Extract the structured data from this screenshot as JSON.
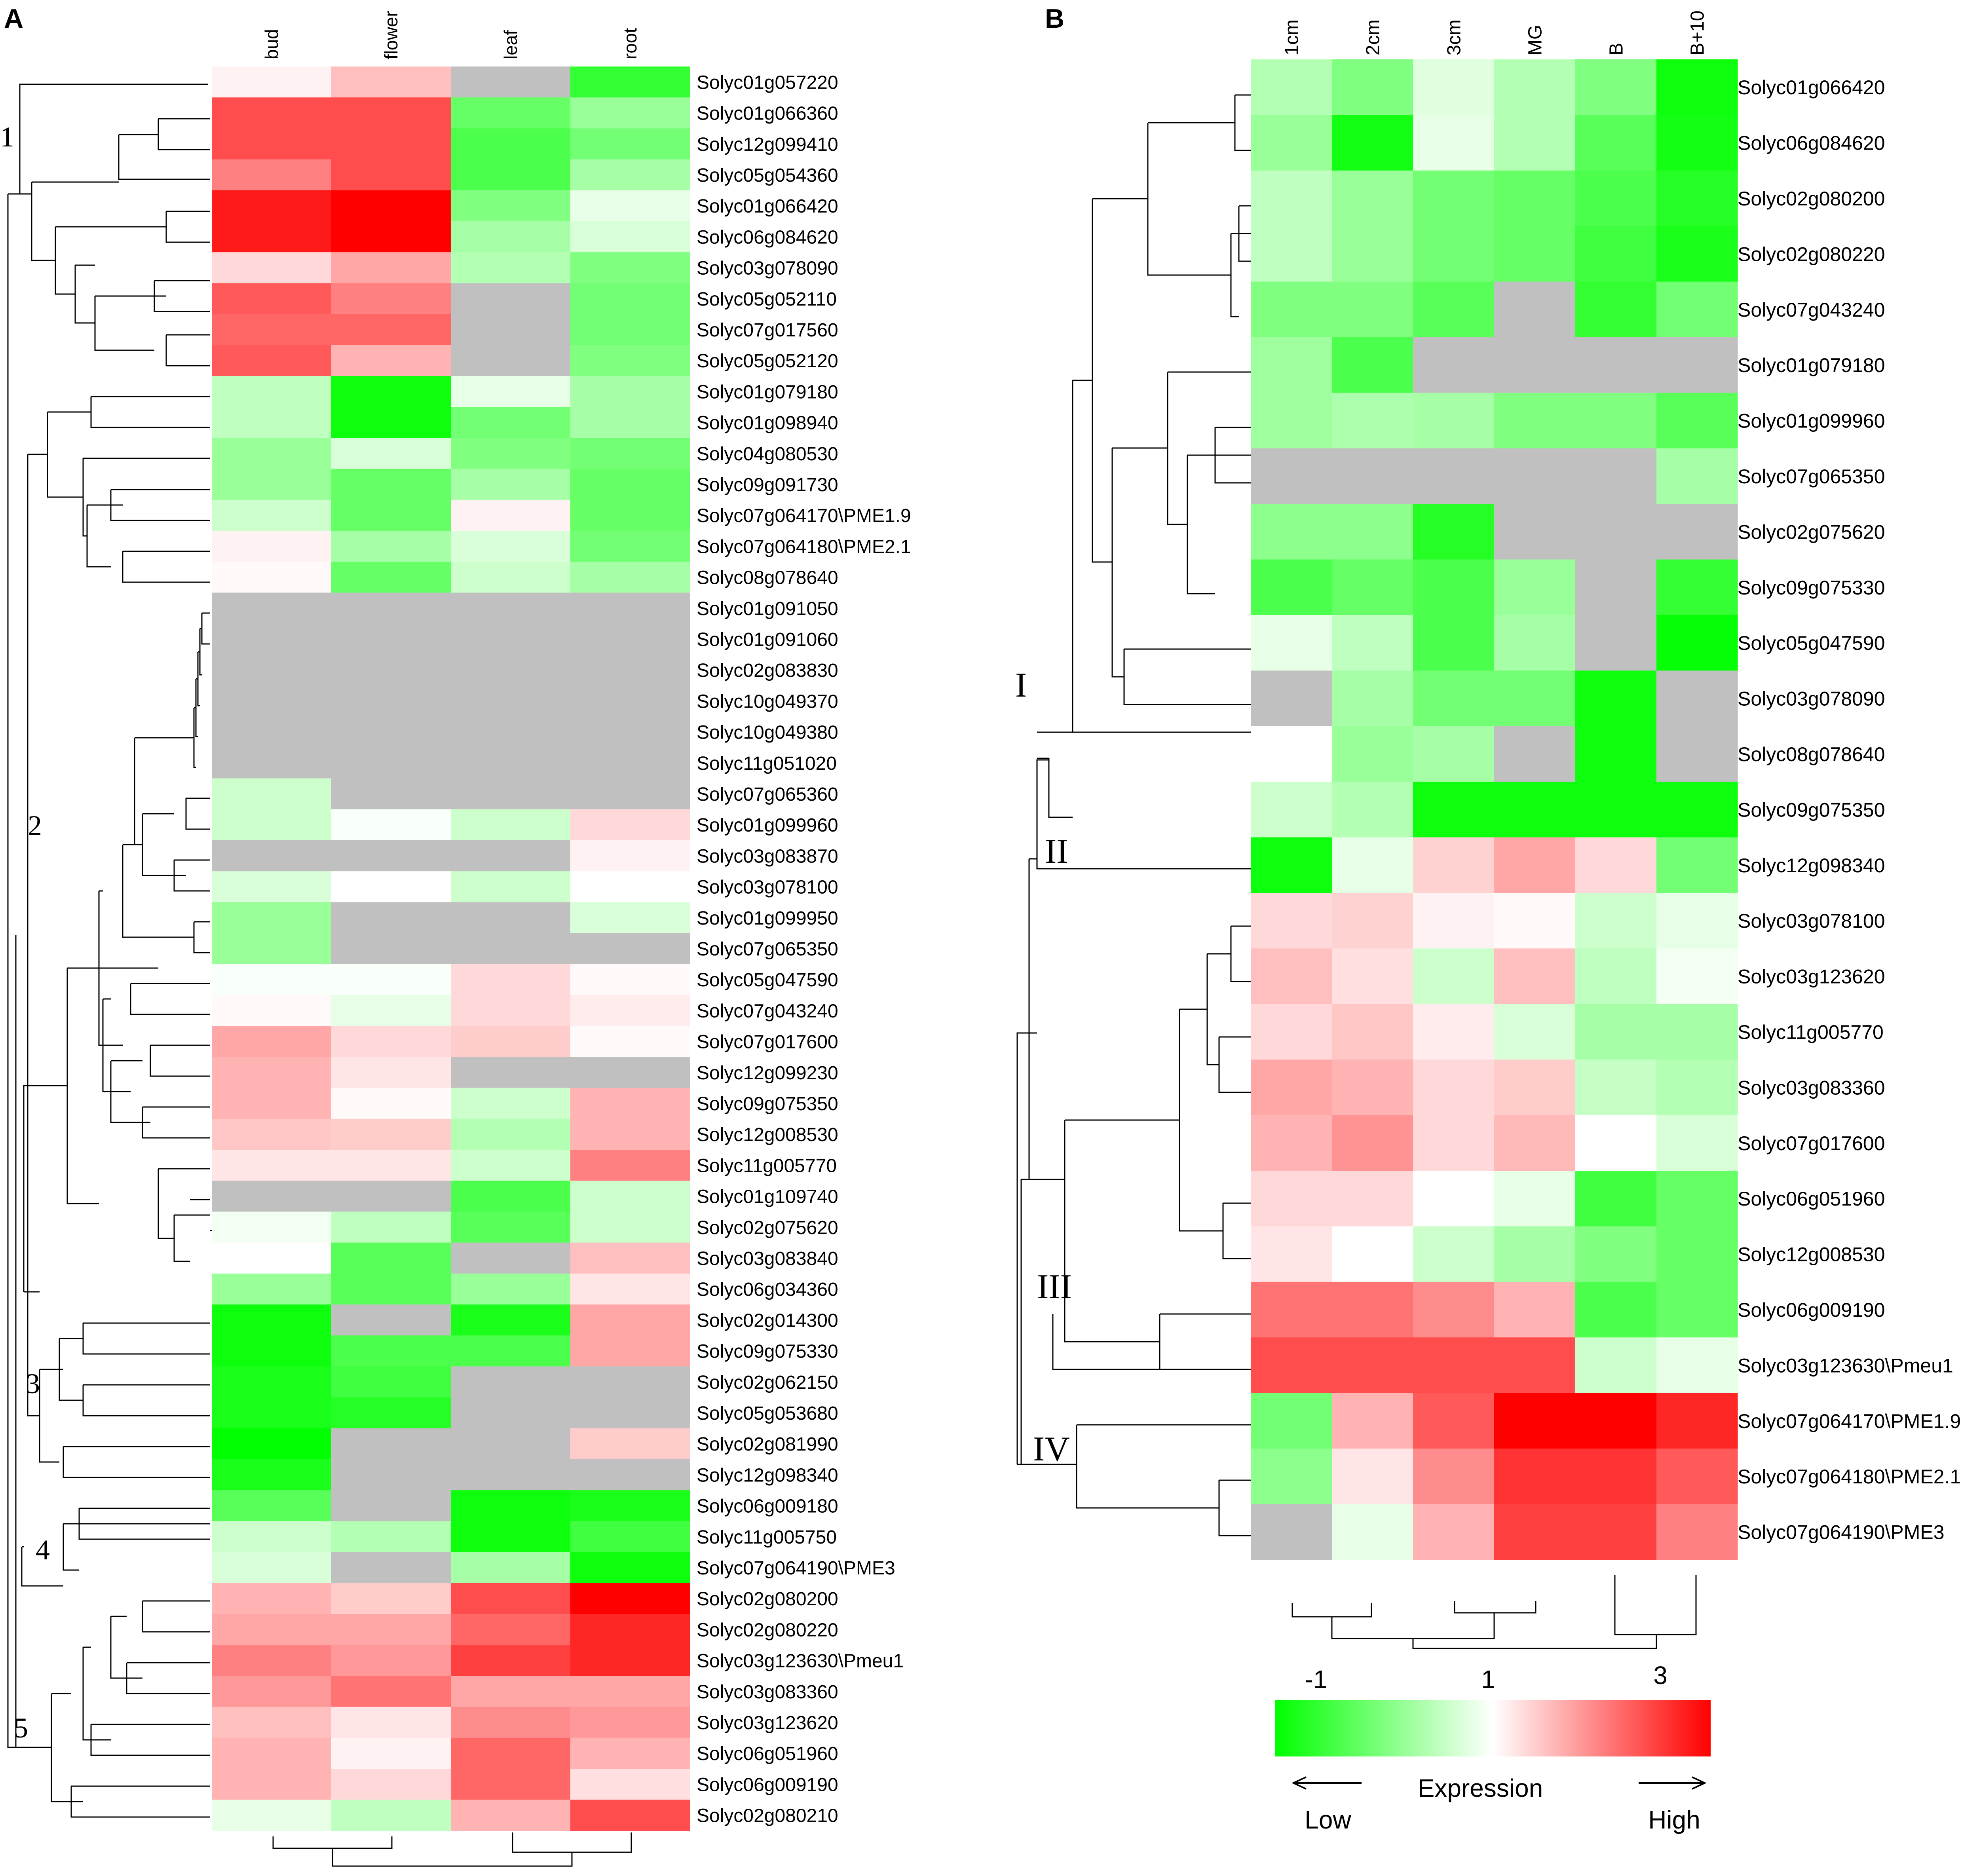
{
  "panels": [
    {
      "letter": "A",
      "columns": [
        "bud",
        "flower",
        "leaf",
        "root"
      ],
      "rows": [
        {
          "gene": "Solyc01g057220",
          "values": [
            1.1,
            1.5,
            null,
            -0.6
          ]
        },
        {
          "gene": "Solyc01g066360",
          "values": [
            2.4,
            2.4,
            -0.2,
            0.2
          ]
        },
        {
          "gene": "Solyc12g099410",
          "values": [
            2.4,
            2.4,
            -0.4,
            -0.1
          ]
        },
        {
          "gene": "Solyc05g054360",
          "values": [
            2.0,
            2.4,
            -0.4,
            0.3
          ]
        },
        {
          "gene": "Solyc01g066420",
          "values": [
            2.8,
            3.0,
            0.0,
            0.8
          ]
        },
        {
          "gene": "Solyc06g084620",
          "values": [
            2.8,
            3.0,
            0.3,
            0.7
          ]
        },
        {
          "gene": "Solyc03g078090",
          "values": [
            1.3,
            1.7,
            0.4,
            0.0
          ]
        },
        {
          "gene": "Solyc05g052110",
          "values": [
            2.3,
            2.0,
            null,
            -0.1
          ]
        },
        {
          "gene": "Solyc07g017560",
          "values": [
            2.2,
            2.2,
            null,
            -0.1
          ]
        },
        {
          "gene": "Solyc05g052120",
          "values": [
            2.3,
            1.6,
            null,
            0.0
          ]
        },
        {
          "gene": "Solyc01g079180",
          "values": [
            0.5,
            -0.9,
            0.8,
            0.3
          ]
        },
        {
          "gene": "Solyc01g098940",
          "values": [
            0.5,
            -0.9,
            -0.1,
            0.3
          ]
        },
        {
          "gene": "Solyc04g080530",
          "values": [
            0.2,
            0.7,
            0.0,
            -0.1
          ]
        },
        {
          "gene": "Solyc09g091730",
          "values": [
            0.2,
            -0.2,
            0.3,
            -0.2
          ]
        },
        {
          "gene": "Solyc07g064170\\PME1.9",
          "values": [
            0.6,
            -0.2,
            1.1,
            -0.2
          ]
        },
        {
          "gene": "Solyc07g064180\\PME2.1",
          "values": [
            1.1,
            0.3,
            0.7,
            -0.1
          ]
        },
        {
          "gene": "Solyc08g078640",
          "values": [
            1.05,
            -0.2,
            0.6,
            0.3
          ]
        },
        {
          "gene": "Solyc01g091050",
          "values": [
            null,
            null,
            null,
            null
          ]
        },
        {
          "gene": "Solyc01g091060",
          "values": [
            null,
            null,
            null,
            null
          ]
        },
        {
          "gene": "Solyc02g083830",
          "values": [
            null,
            null,
            null,
            null
          ]
        },
        {
          "gene": "Solyc10g049370",
          "values": [
            null,
            null,
            null,
            null
          ]
        },
        {
          "gene": "Solyc10g049380",
          "values": [
            null,
            null,
            null,
            null
          ]
        },
        {
          "gene": "Solyc11g051020",
          "values": [
            null,
            null,
            null,
            null
          ]
        },
        {
          "gene": "Solyc07g065360",
          "values": [
            0.6,
            null,
            null,
            null
          ]
        },
        {
          "gene": "Solyc01g099960",
          "values": [
            0.6,
            0.95,
            0.6,
            1.3
          ]
        },
        {
          "gene": "Solyc03g083870",
          "values": [
            null,
            null,
            null,
            1.1
          ]
        },
        {
          "gene": "Solyc03g078100",
          "values": [
            0.7,
            1.0,
            0.6,
            1.0
          ]
        },
        {
          "gene": "Solyc01g099950",
          "values": [
            0.2,
            null,
            null,
            0.7
          ]
        },
        {
          "gene": "Solyc07g065350",
          "values": [
            0.2,
            null,
            null,
            null
          ]
        },
        {
          "gene": "Solyc05g047590",
          "values": [
            0.95,
            0.95,
            1.3,
            1.05
          ]
        },
        {
          "gene": "Solyc07g043240",
          "values": [
            1.05,
            0.8,
            1.3,
            1.15
          ]
        },
        {
          "gene": "Solyc07g017600",
          "values": [
            1.7,
            1.3,
            1.4,
            1.05
          ]
        },
        {
          "gene": "Solyc12g099230",
          "values": [
            1.6,
            1.2,
            null,
            null
          ]
        },
        {
          "gene": "Solyc09g075350",
          "values": [
            1.6,
            1.05,
            0.6,
            1.6
          ]
        },
        {
          "gene": "Solyc12g008530",
          "values": [
            1.45,
            1.4,
            0.4,
            1.6
          ]
        },
        {
          "gene": "Solyc11g005770",
          "values": [
            1.2,
            1.2,
            0.6,
            2.0
          ]
        },
        {
          "gene": "Solyc01g109740",
          "values": [
            null,
            null,
            -0.4,
            0.6
          ]
        },
        {
          "gene": "Solyc02g075620",
          "values": [
            0.9,
            0.5,
            -0.3,
            0.6
          ]
        },
        {
          "gene": "Solyc03g083840",
          "values": [
            1.0,
            -0.3,
            null,
            1.5
          ]
        },
        {
          "gene": "Solyc06g034360",
          "values": [
            0.2,
            -0.3,
            0.2,
            1.2
          ]
        },
        {
          "gene": "Solyc02g014300",
          "values": [
            -0.9,
            null,
            -0.8,
            1.7
          ]
        },
        {
          "gene": "Solyc09g075330",
          "values": [
            -0.9,
            -0.4,
            -0.4,
            1.7
          ]
        },
        {
          "gene": "Solyc02g062150",
          "values": [
            -0.8,
            -0.5,
            null,
            null
          ]
        },
        {
          "gene": "Solyc05g053680",
          "values": [
            -0.8,
            -0.7,
            null,
            null
          ]
        },
        {
          "gene": "Solyc02g081990",
          "values": [
            -1.0,
            null,
            null,
            1.4
          ]
        },
        {
          "gene": "Solyc12g098340",
          "values": [
            -0.8,
            null,
            null,
            null
          ]
        },
        {
          "gene": "Solyc06g009180",
          "values": [
            -0.3,
            null,
            -0.9,
            -0.8
          ]
        },
        {
          "gene": "Solyc11g005750",
          "values": [
            0.6,
            0.4,
            -0.9,
            -0.5
          ]
        },
        {
          "gene": "Solyc07g064190\\PME3",
          "values": [
            0.7,
            null,
            0.3,
            -0.9
          ]
        },
        {
          "gene": "Solyc02g080200",
          "values": [
            1.6,
            1.4,
            2.4,
            3.0
          ]
        },
        {
          "gene": "Solyc02g080220",
          "values": [
            1.7,
            1.7,
            2.2,
            2.7
          ]
        },
        {
          "gene": "Solyc03g123630\\Pmeu1",
          "values": [
            2.0,
            1.8,
            2.5,
            2.7
          ]
        },
        {
          "gene": "Solyc03g083360",
          "values": [
            1.8,
            2.1,
            1.7,
            1.7
          ]
        },
        {
          "gene": "Solyc03g123620",
          "values": [
            1.5,
            1.2,
            1.9,
            1.8
          ]
        },
        {
          "gene": "Solyc06g051960",
          "values": [
            1.6,
            1.1,
            2.2,
            1.6
          ]
        },
        {
          "gene": "Solyc06g009190",
          "values": [
            1.6,
            1.3,
            2.2,
            1.25
          ]
        },
        {
          "gene": "Solyc02g080210",
          "values": [
            0.8,
            0.5,
            1.6,
            2.4
          ]
        }
      ],
      "cluster_labels": [
        "1",
        "2",
        "3",
        "4",
        "5"
      ]
    },
    {
      "letter": "B",
      "columns": [
        "1cm",
        "2cm",
        "3cm",
        "MG",
        "B",
        "B+10"
      ],
      "rows": [
        {
          "gene": "Solyc01g066420",
          "values": [
            0.4,
            0.0,
            0.75,
            0.4,
            0.0,
            -0.9
          ]
        },
        {
          "gene": "Solyc06g084620",
          "values": [
            0.2,
            -0.85,
            0.8,
            0.4,
            -0.3,
            -0.85
          ]
        },
        {
          "gene": "Solyc02g080200",
          "values": [
            0.5,
            0.2,
            -0.1,
            -0.2,
            -0.4,
            -0.7
          ]
        },
        {
          "gene": "Solyc02g080220",
          "values": [
            0.5,
            0.2,
            -0.1,
            -0.2,
            -0.5,
            -0.8
          ]
        },
        {
          "gene": "Solyc07g043240",
          "values": [
            0.0,
            0.0,
            -0.3,
            null,
            -0.6,
            -0.1
          ]
        },
        {
          "gene": "Solyc01g079180",
          "values": [
            0.25,
            -0.4,
            null,
            null,
            null,
            null
          ]
        },
        {
          "gene": "Solyc01g099960",
          "values": [
            0.25,
            0.35,
            0.3,
            0.0,
            0.0,
            -0.3
          ]
        },
        {
          "gene": "Solyc07g065350",
          "values": [
            null,
            null,
            null,
            null,
            null,
            0.3
          ]
        },
        {
          "gene": "Solyc02g075620",
          "values": [
            0.1,
            0.1,
            -0.7,
            null,
            null,
            null
          ]
        },
        {
          "gene": "Solyc09g075330",
          "values": [
            -0.4,
            -0.2,
            -0.4,
            0.2,
            null,
            -0.6
          ]
        },
        {
          "gene": "Solyc05g047590",
          "values": [
            0.8,
            0.5,
            -0.4,
            0.3,
            null,
            -0.95
          ]
        },
        {
          "gene": "Solyc03g078090",
          "values": [
            null,
            0.3,
            -0.1,
            -0.1,
            -0.9,
            null
          ]
        },
        {
          "gene": "Solyc08g078640",
          "values": [
            1.0,
            0.2,
            0.3,
            null,
            -0.9,
            null
          ]
        },
        {
          "gene": "Solyc09g075350",
          "values": [
            0.6,
            0.4,
            -0.9,
            -0.9,
            -0.9,
            -0.9
          ]
        },
        {
          "gene": "Solyc12g098340",
          "values": [
            -0.9,
            0.8,
            1.35,
            1.7,
            1.3,
            -0.1
          ]
        },
        {
          "gene": "Solyc03g078100",
          "values": [
            1.3,
            1.35,
            1.1,
            1.05,
            0.6,
            0.8
          ]
        },
        {
          "gene": "Solyc03g123620",
          "values": [
            1.5,
            1.25,
            0.6,
            1.5,
            0.5,
            0.9
          ]
        },
        {
          "gene": "Solyc11g005770",
          "values": [
            1.3,
            1.45,
            1.15,
            0.7,
            0.3,
            0.3
          ]
        },
        {
          "gene": "Solyc03g083360",
          "values": [
            1.7,
            1.6,
            1.3,
            1.4,
            0.55,
            0.4
          ]
        },
        {
          "gene": "Solyc07g017600",
          "values": [
            1.6,
            1.85,
            1.3,
            1.55,
            1.0,
            0.7
          ]
        },
        {
          "gene": "Solyc06g051960",
          "values": [
            1.3,
            1.3,
            1.0,
            0.8,
            -0.5,
            -0.2
          ]
        },
        {
          "gene": "Solyc12g008530",
          "values": [
            1.2,
            1.0,
            0.6,
            0.3,
            0.0,
            -0.2
          ]
        },
        {
          "gene": "Solyc06g009190",
          "values": [
            2.1,
            2.1,
            1.9,
            1.6,
            -0.4,
            -0.2
          ]
        },
        {
          "gene": "Solyc03g123630\\Pmeu1",
          "values": [
            2.4,
            2.4,
            2.4,
            2.4,
            0.6,
            0.8
          ]
        },
        {
          "gene": "Solyc07g064170\\PME1.9",
          "values": [
            -0.1,
            1.6,
            2.3,
            3.0,
            3.0,
            2.7
          ]
        },
        {
          "gene": "Solyc07g064180\\PME2.1",
          "values": [
            0.1,
            1.2,
            1.9,
            2.6,
            2.6,
            2.3
          ]
        },
        {
          "gene": "Solyc07g064190\\PME3",
          "values": [
            null,
            0.8,
            1.6,
            2.5,
            2.5,
            2.0
          ]
        }
      ],
      "cluster_labels": [
        "I",
        "II",
        "III",
        "IV"
      ]
    }
  ],
  "legend": {
    "ticks": [
      "-1",
      "1",
      "3"
    ],
    "title": "Expression",
    "low_label": "Low",
    "high_label": "High"
  },
  "colors": {
    "low": "#00ff00",
    "mid": "#ffffff",
    "high": "#ff0000",
    "missing": "#c0c0c0"
  },
  "chart_data": [
    {
      "type": "heatmap",
      "panel": "A",
      "columns": [
        "bud",
        "flower",
        "leaf",
        "root"
      ],
      "color_scale": {
        "min": -1,
        "mid": 1,
        "max": 3
      },
      "missing_color": "gray"
    },
    {
      "type": "heatmap",
      "panel": "B",
      "columns": [
        "1cm",
        "2cm",
        "3cm",
        "MG",
        "B",
        "B+10"
      ],
      "color_scale": {
        "min": -1,
        "mid": 1,
        "max": 3
      },
      "missing_color": "gray"
    }
  ]
}
